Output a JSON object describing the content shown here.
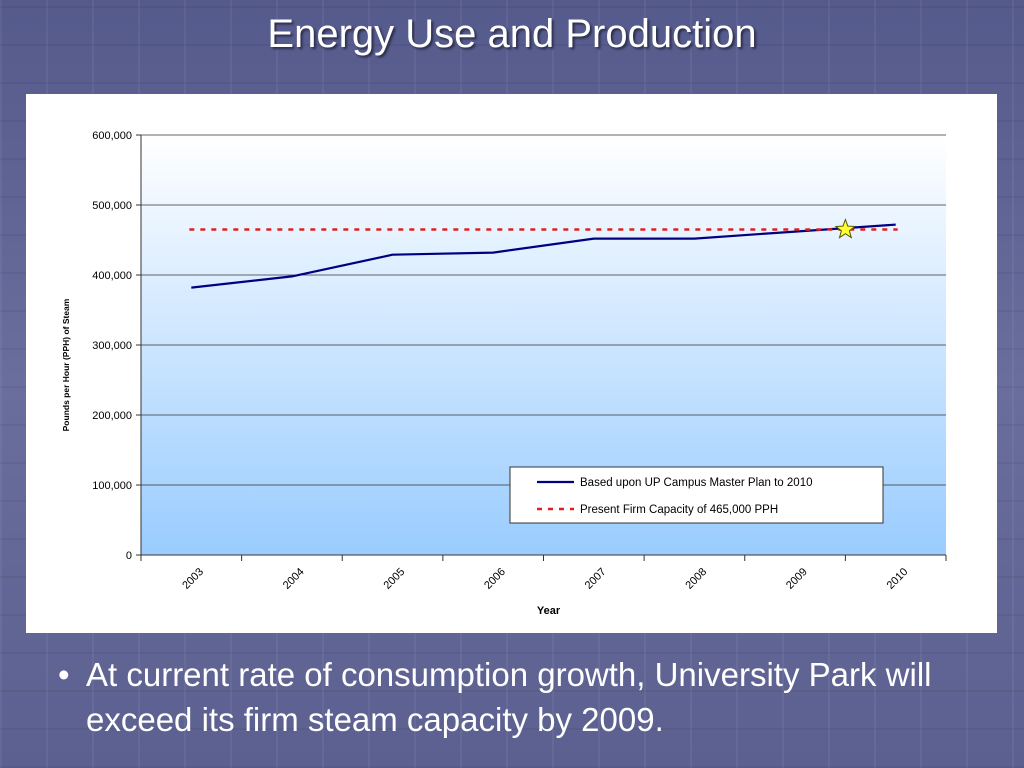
{
  "slide": {
    "title": "Energy Use and Production",
    "bullet_symbol": "•",
    "bullet_text": "At current rate of consumption growth, University Park will exceed its firm steam capacity by 2009."
  },
  "colors": {
    "background": "#5f6391",
    "plot_gradient_top": "#ffffff",
    "plot_gradient_bottom": "#99ccff",
    "series_line": "#000080",
    "capacity_line": "#e02020",
    "marker_fill": "#ffff33"
  },
  "chart_data": {
    "type": "line",
    "title": "",
    "xlabel": "Year",
    "ylabel": "Pounds per Hour (PPH) of Steam",
    "x": [
      "2003",
      "2004",
      "2005",
      "2006",
      "2007",
      "2008",
      "2009",
      "2010"
    ],
    "ylim": [
      0,
      600000
    ],
    "y_ticks": [
      0,
      100000,
      200000,
      300000,
      400000,
      500000,
      600000
    ],
    "y_tick_labels": [
      "0",
      "100,000",
      "200,000",
      "300,000",
      "400,000",
      "500,000",
      "600,000"
    ],
    "grid": true,
    "legend_position": "bottom-right",
    "series": [
      {
        "name": "Based upon UP Campus Master Plan to 2010",
        "style": "solid",
        "values": [
          382000,
          398000,
          429000,
          432000,
          452000,
          452000,
          462000,
          472000
        ]
      },
      {
        "name": "Present Firm Capacity of 465,000 PPH",
        "style": "dashed",
        "values": [
          465000,
          465000,
          465000,
          465000,
          465000,
          465000,
          465000,
          465000
        ]
      }
    ],
    "annotations": [
      {
        "type": "star",
        "x": 2009.5,
        "y": 465000
      }
    ]
  }
}
